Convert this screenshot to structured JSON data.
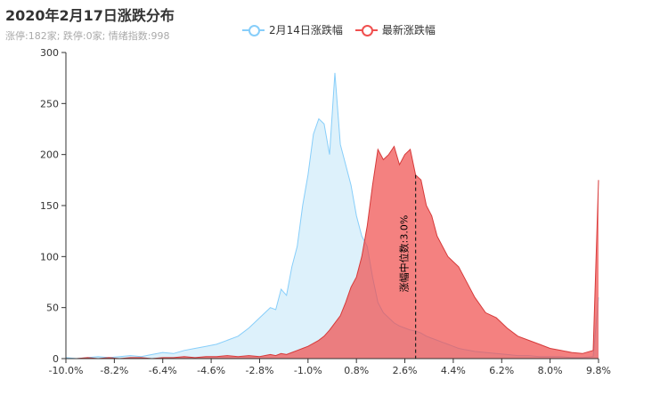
{
  "title": "2020年2月17日涨跌分布",
  "subtitle": "涨停:182家; 跌停:0家; 情绪指数:998",
  "colors": {
    "series_a": "#87cefa",
    "series_b": "#f0504f"
  },
  "chart_data": {
    "type": "area",
    "x": [
      -10.0,
      -9.6,
      -9.2,
      -8.8,
      -8.4,
      -8.0,
      -7.6,
      -7.2,
      -6.8,
      -6.4,
      -6.0,
      -5.6,
      -5.2,
      -4.8,
      -4.4,
      -4.0,
      -3.6,
      -3.2,
      -2.8,
      -2.4,
      -2.2,
      -2.0,
      -1.8,
      -1.6,
      -1.4,
      -1.2,
      -1.0,
      -0.8,
      -0.6,
      -0.4,
      -0.2,
      0.0,
      0.2,
      0.4,
      0.6,
      0.8,
      1.0,
      1.2,
      1.4,
      1.6,
      1.8,
      2.0,
      2.2,
      2.4,
      2.6,
      2.8,
      3.0,
      3.2,
      3.4,
      3.6,
      3.8,
      4.0,
      4.2,
      4.4,
      4.6,
      4.8,
      5.0,
      5.2,
      5.6,
      6.0,
      6.4,
      6.8,
      7.2,
      7.6,
      8.0,
      8.4,
      8.8,
      9.2,
      9.6,
      9.8
    ],
    "series": [
      {
        "name": "2月14日涨跌幅",
        "values": [
          1,
          0,
          1,
          2,
          1,
          2,
          3,
          2,
          4,
          6,
          5,
          8,
          10,
          12,
          14,
          18,
          22,
          30,
          40,
          50,
          48,
          68,
          62,
          90,
          110,
          150,
          180,
          220,
          235,
          230,
          200,
          280,
          210,
          190,
          170,
          140,
          120,
          110,
          80,
          55,
          45,
          40,
          35,
          32,
          30,
          28,
          27,
          25,
          22,
          20,
          18,
          16,
          14,
          12,
          10,
          9,
          8,
          7,
          6,
          5,
          4,
          3,
          3,
          2,
          2,
          2,
          1,
          1,
          2,
          60
        ]
      },
      {
        "name": "最新涨跌幅",
        "values": [
          0,
          0,
          1,
          0,
          1,
          0,
          1,
          1,
          0,
          1,
          1,
          2,
          1,
          2,
          2,
          3,
          2,
          3,
          2,
          4,
          3,
          5,
          4,
          6,
          8,
          10,
          12,
          15,
          18,
          22,
          28,
          35,
          42,
          55,
          70,
          80,
          100,
          130,
          170,
          205,
          195,
          200,
          208,
          190,
          200,
          205,
          180,
          175,
          150,
          140,
          120,
          110,
          100,
          95,
          90,
          80,
          70,
          60,
          45,
          40,
          30,
          22,
          18,
          14,
          10,
          8,
          6,
          5,
          8,
          175
        ]
      }
    ],
    "xlim": [
      -10.0,
      9.8
    ],
    "ylim": [
      0,
      300
    ],
    "xticks": [
      -10.0,
      -8.2,
      -6.4,
      -4.6,
      -2.8,
      -1.0,
      0.8,
      2.6,
      4.4,
      6.2,
      8.0,
      9.8
    ],
    "xtick_labels": [
      "-10.0%",
      "-8.2%",
      "-6.4%",
      "-4.6%",
      "-2.8%",
      "-1.0%",
      "0.8%",
      "2.6%",
      "4.4%",
      "6.2%",
      "8.0%",
      "9.8%"
    ],
    "yticks": [
      0,
      50,
      100,
      150,
      200,
      250,
      300
    ],
    "median": {
      "x": 3.0,
      "label": "涨幅中位数:3.0%"
    },
    "grid": false,
    "legend_position": "top"
  }
}
